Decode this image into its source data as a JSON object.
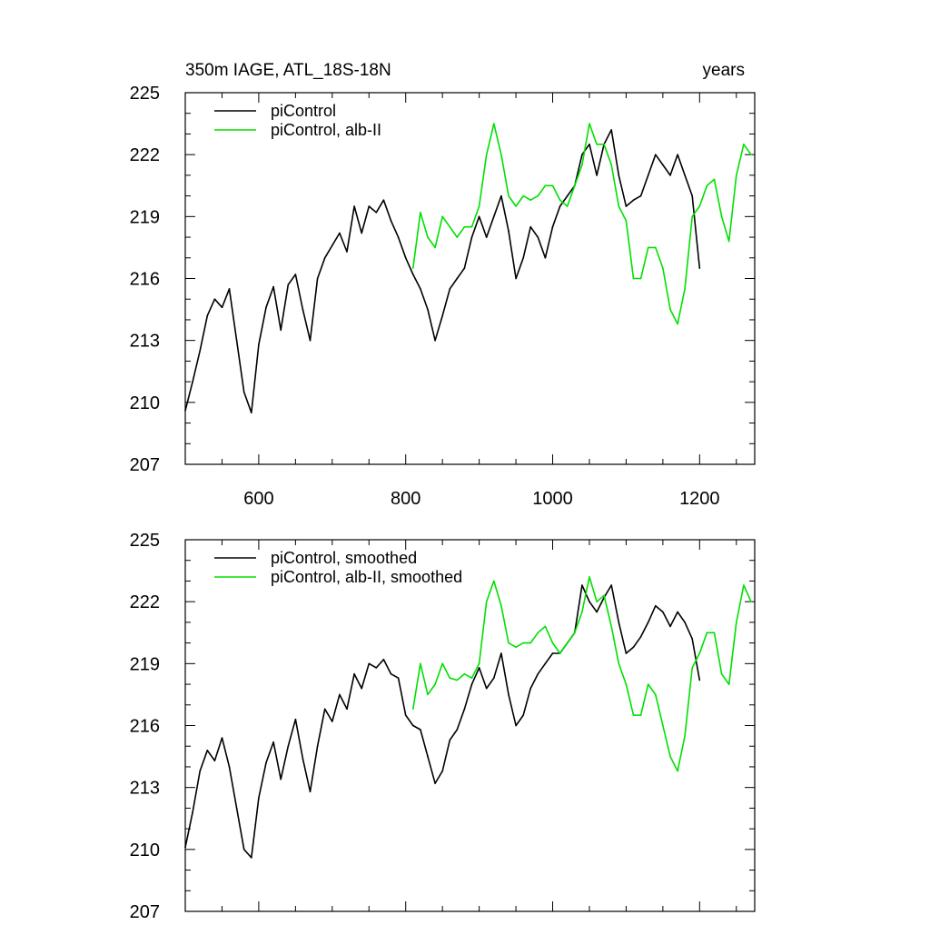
{
  "chart_data": [
    {
      "type": "line",
      "title": "350m IAGE, ATL_18S-18N",
      "title_right": "years",
      "xlim": [
        500,
        1275
      ],
      "ylim": [
        207,
        225
      ],
      "xticks": [
        600,
        800,
        1000,
        1200
      ],
      "xtick_labels": [
        "600",
        "800",
        "1000",
        "1200"
      ],
      "yticks": [
        207,
        210,
        213,
        216,
        219,
        222,
        225
      ],
      "ytick_labels": [
        "207",
        "210",
        "213",
        "216",
        "219",
        "222",
        "225"
      ],
      "grid": false,
      "legend_position": "top-left",
      "series": [
        {
          "name": "piControl",
          "color": "#000000",
          "x": [
            500,
            510,
            520,
            530,
            540,
            550,
            560,
            570,
            580,
            590,
            600,
            610,
            620,
            630,
            640,
            650,
            660,
            670,
            680,
            690,
            700,
            710,
            720,
            730,
            740,
            750,
            760,
            770,
            780,
            790,
            800,
            810,
            820,
            830,
            840,
            850,
            860,
            870,
            880,
            890,
            900,
            910,
            920,
            930,
            940,
            950,
            960,
            970,
            980,
            990,
            1000,
            1010,
            1020,
            1030,
            1040,
            1050,
            1060,
            1070,
            1080,
            1090,
            1100,
            1110,
            1120,
            1130,
            1140,
            1150,
            1160,
            1170,
            1180,
            1190,
            1200
          ],
          "y": [
            209.6,
            211.0,
            212.5,
            214.2,
            215.0,
            214.6,
            215.5,
            213.0,
            210.5,
            209.5,
            212.8,
            214.6,
            215.6,
            213.5,
            215.7,
            216.2,
            214.5,
            213.0,
            216.0,
            217.0,
            217.6,
            218.2,
            217.3,
            219.5,
            218.2,
            219.5,
            219.2,
            219.8,
            218.8,
            218.0,
            217.0,
            216.2,
            215.5,
            214.5,
            213.0,
            214.2,
            215.5,
            216.0,
            216.5,
            218.0,
            219.0,
            218.0,
            219.0,
            220.0,
            218.3,
            216.0,
            217.0,
            218.5,
            218.0,
            217.0,
            218.5,
            219.5,
            220.0,
            220.5,
            222.0,
            222.5,
            221.0,
            222.5,
            223.2,
            221.0,
            219.5,
            219.8,
            220.0,
            221.0,
            222.0,
            221.5,
            221.0,
            222.0,
            221.0,
            220.0,
            216.5
          ]
        },
        {
          "name": "piControl, alb-II",
          "color": "#00e000",
          "x": [
            810,
            820,
            830,
            840,
            850,
            860,
            870,
            880,
            890,
            900,
            910,
            920,
            930,
            940,
            950,
            960,
            970,
            980,
            990,
            1000,
            1010,
            1020,
            1030,
            1040,
            1050,
            1060,
            1070,
            1080,
            1090,
            1100,
            1110,
            1120,
            1130,
            1140,
            1150,
            1160,
            1170,
            1180,
            1190,
            1200,
            1210,
            1220,
            1230,
            1240,
            1250,
            1260,
            1270
          ],
          "y": [
            216.5,
            219.2,
            218.0,
            217.5,
            219.0,
            218.5,
            218.0,
            218.5,
            218.5,
            219.5,
            222.0,
            223.5,
            222.0,
            220.0,
            219.5,
            220.0,
            219.8,
            220.0,
            220.5,
            220.5,
            219.8,
            219.5,
            220.5,
            221.5,
            223.5,
            222.5,
            222.5,
            221.5,
            219.5,
            218.8,
            216.0,
            216.0,
            217.5,
            217.5,
            216.5,
            214.5,
            213.8,
            215.5,
            219.0,
            219.5,
            220.5,
            220.8,
            219.0,
            217.8,
            221.0,
            222.5,
            222.0
          ]
        }
      ]
    },
    {
      "type": "line",
      "title": "",
      "xlim": [
        500,
        1275
      ],
      "ylim": [
        207,
        225
      ],
      "xticks": [
        600,
        800,
        1000,
        1200
      ],
      "xtick_labels": [],
      "yticks": [
        207,
        210,
        213,
        216,
        219,
        222,
        225
      ],
      "ytick_labels": [
        "207",
        "210",
        "213",
        "216",
        "219",
        "222",
        "225"
      ],
      "grid": false,
      "legend_position": "top-left",
      "series": [
        {
          "name": "piControl, smoothed",
          "color": "#000000",
          "x": [
            500,
            510,
            520,
            530,
            540,
            550,
            560,
            570,
            580,
            590,
            600,
            610,
            620,
            630,
            640,
            650,
            660,
            670,
            680,
            690,
            700,
            710,
            720,
            730,
            740,
            750,
            760,
            770,
            780,
            790,
            800,
            810,
            820,
            830,
            840,
            850,
            860,
            870,
            880,
            890,
            900,
            910,
            920,
            930,
            940,
            950,
            960,
            970,
            980,
            990,
            1000,
            1010,
            1020,
            1030,
            1040,
            1050,
            1060,
            1070,
            1080,
            1090,
            1100,
            1110,
            1120,
            1130,
            1140,
            1150,
            1160,
            1170,
            1180,
            1190,
            1200
          ],
          "y": [
            210.1,
            211.8,
            213.8,
            214.8,
            214.3,
            215.4,
            214.0,
            212.0,
            210.0,
            209.6,
            212.5,
            214.2,
            215.2,
            213.4,
            215.0,
            216.3,
            214.4,
            212.8,
            215.0,
            216.8,
            216.2,
            217.5,
            216.8,
            218.5,
            217.8,
            219.0,
            218.8,
            219.2,
            218.5,
            218.3,
            216.5,
            216.0,
            215.8,
            214.5,
            213.2,
            213.8,
            215.3,
            215.8,
            216.8,
            218.0,
            218.8,
            217.8,
            218.3,
            219.5,
            217.5,
            216.0,
            216.5,
            217.8,
            218.5,
            219.0,
            219.5,
            219.5,
            220.0,
            220.5,
            222.8,
            222.0,
            221.5,
            222.2,
            222.8,
            221.0,
            219.5,
            219.8,
            220.3,
            221.0,
            221.8,
            221.5,
            220.8,
            221.5,
            221.0,
            220.2,
            218.2
          ]
        },
        {
          "name": "piControl, alb-II, smoothed",
          "color": "#00e000",
          "x": [
            810,
            820,
            830,
            840,
            850,
            860,
            870,
            880,
            890,
            900,
            910,
            920,
            930,
            940,
            950,
            960,
            970,
            980,
            990,
            1000,
            1010,
            1020,
            1030,
            1040,
            1050,
            1060,
            1070,
            1080,
            1090,
            1100,
            1110,
            1120,
            1130,
            1140,
            1150,
            1160,
            1170,
            1180,
            1190,
            1200,
            1210,
            1220,
            1230,
            1240,
            1250,
            1260,
            1270
          ],
          "y": [
            216.8,
            219.0,
            217.5,
            218.0,
            219.0,
            218.3,
            218.2,
            218.5,
            218.3,
            219.0,
            222.0,
            223.0,
            221.8,
            220.0,
            219.8,
            220.0,
            220.0,
            220.5,
            220.8,
            220.0,
            219.5,
            220.0,
            220.5,
            221.5,
            223.2,
            222.0,
            222.3,
            220.8,
            219.0,
            218.0,
            216.5,
            216.5,
            218.0,
            217.5,
            216.0,
            214.5,
            213.8,
            215.5,
            218.8,
            219.5,
            220.5,
            220.5,
            218.5,
            218.0,
            221.0,
            222.8,
            222.0
          ]
        }
      ]
    }
  ]
}
